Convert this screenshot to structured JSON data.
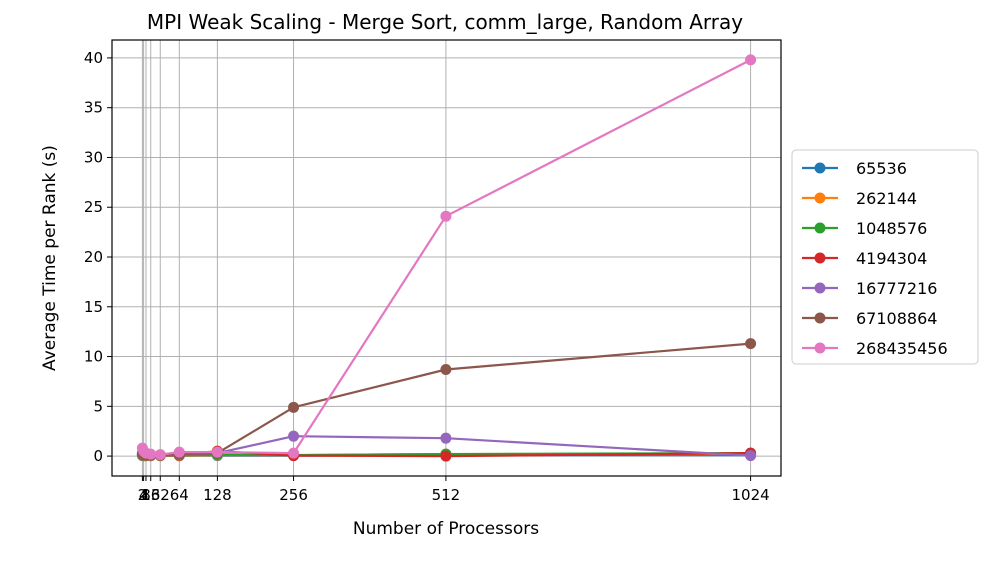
{
  "chart_data": {
    "type": "line",
    "title": "MPI Weak Scaling - Merge Sort, comm_large, Random Array",
    "xlabel": "Number of Processors",
    "ylabel": "Average Time per Rank (s)",
    "x": [
      2,
      4,
      8,
      16,
      32,
      64,
      128,
      256,
      512,
      1024
    ],
    "xticks": [
      2,
      4,
      8,
      16,
      32,
      64,
      128,
      256,
      512,
      1024
    ],
    "xtick_labels": [
      "2",
      "4",
      "8",
      "16",
      "32",
      "64",
      "128",
      "256",
      "512",
      "1024"
    ],
    "yticks": [
      0,
      5,
      10,
      15,
      20,
      25,
      30,
      35,
      40
    ],
    "xlim": [
      -49.1,
      1075.1
    ],
    "ylim": [
      -2.0,
      41.8
    ],
    "grid": true,
    "legend_position": "outside right",
    "series": [
      {
        "name": "65536",
        "color": "#1f77b4",
        "values": [
          0.05,
          0.04,
          0.03,
          0.03,
          0.03,
          0.03,
          0.05,
          0.05,
          0.1,
          0.1
        ]
      },
      {
        "name": "262144",
        "color": "#ff7f0e",
        "values": [
          0.1,
          0.08,
          0.06,
          0.05,
          0.05,
          0.05,
          0.1,
          0.1,
          0.2,
          0.2
        ]
      },
      {
        "name": "1048576",
        "color": "#2ca02c",
        "values": [
          0.15,
          0.12,
          0.1,
          0.08,
          0.08,
          0.08,
          0.15,
          0.1,
          0.2,
          0.3
        ]
      },
      {
        "name": "4194304",
        "color": "#d62728",
        "values": [
          0.2,
          0.15,
          0.12,
          0.1,
          0.1,
          0.1,
          0.5,
          0.05,
          0.0,
          0.3
        ]
      },
      {
        "name": "16777216",
        "color": "#9467bd",
        "values": [
          0.25,
          0.2,
          0.15,
          0.1,
          0.1,
          0.15,
          0.3,
          2.0,
          1.8,
          0.05
        ]
      },
      {
        "name": "67108864",
        "color": "#8c564b",
        "values": [
          0.3,
          0.2,
          0.15,
          0.1,
          0.1,
          0.2,
          0.3,
          4.9,
          8.7,
          11.3
        ]
      },
      {
        "name": "268435456",
        "color": "#e377c2",
        "values": [
          0.8,
          0.5,
          0.3,
          0.2,
          0.15,
          0.4,
          0.4,
          0.3,
          24.1,
          39.8
        ]
      }
    ]
  }
}
